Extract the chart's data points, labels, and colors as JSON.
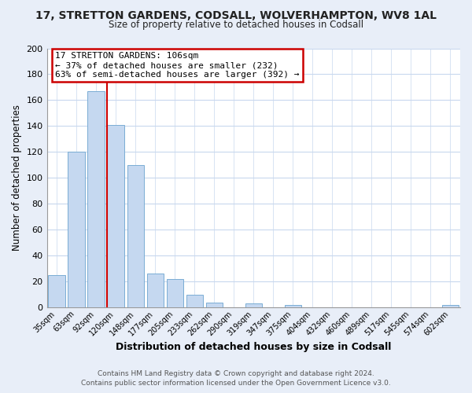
{
  "title": "17, STRETTON GARDENS, CODSALL, WOLVERHAMPTON, WV8 1AL",
  "subtitle": "Size of property relative to detached houses in Codsall",
  "xlabel": "Distribution of detached houses by size in Codsall",
  "ylabel": "Number of detached properties",
  "bar_color": "#c5d8f0",
  "bar_edge_color": "#7aadd4",
  "categories": [
    "35sqm",
    "63sqm",
    "92sqm",
    "120sqm",
    "148sqm",
    "177sqm",
    "205sqm",
    "233sqm",
    "262sqm",
    "290sqm",
    "319sqm",
    "347sqm",
    "375sqm",
    "404sqm",
    "432sqm",
    "460sqm",
    "489sqm",
    "517sqm",
    "545sqm",
    "574sqm",
    "602sqm"
  ],
  "values": [
    25,
    120,
    167,
    141,
    110,
    26,
    22,
    10,
    4,
    0,
    3,
    0,
    2,
    0,
    0,
    0,
    0,
    0,
    0,
    0,
    2
  ],
  "annotation_title": "17 STRETTON GARDENS: 106sqm",
  "annotation_line1": "← 37% of detached houses are smaller (232)",
  "annotation_line2": "63% of semi-detached houses are larger (392) →",
  "annotation_box_color": "#ffffff",
  "annotation_box_edge": "#cc0000",
  "property_line_color": "#cc0000",
  "ylim": [
    0,
    200
  ],
  "yticks": [
    0,
    20,
    40,
    60,
    80,
    100,
    120,
    140,
    160,
    180,
    200
  ],
  "grid_color": "#c8d8ee",
  "footer1": "Contains HM Land Registry data © Crown copyright and database right 2024.",
  "footer2": "Contains public sector information licensed under the Open Government Licence v3.0.",
  "fig_bg_color": "#e8eef8",
  "plot_bg_color": "#ffffff"
}
